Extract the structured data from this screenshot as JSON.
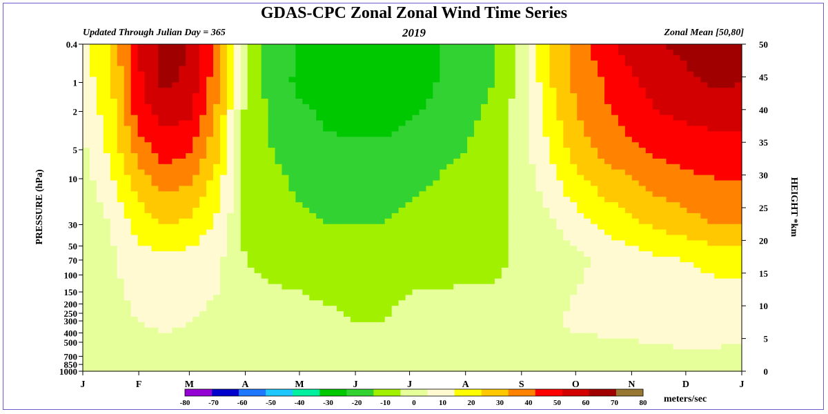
{
  "chart_data": {
    "type": "heatmap",
    "title": "GDAS-CPC Zonal Zonal Wind Time Series",
    "subtitle_left": "Updated Through Julian Day = 365",
    "subtitle_center": "2019",
    "subtitle_right": "Zonal Mean [50,80]",
    "ylabel_left": "PRESSURE (hPa)",
    "ylabel_right": "HEIGHT *km",
    "xlabel": "",
    "x_ticks": [
      "J",
      "F",
      "M",
      "A",
      "M",
      "J",
      "J",
      "A",
      "S",
      "O",
      "N",
      "D",
      "J"
    ],
    "x_tick_days": [
      0,
      31,
      59,
      90,
      120,
      151,
      181,
      212,
      243,
      273,
      304,
      334,
      365
    ],
    "pressure_ticks": [
      0.4,
      1,
      2,
      5,
      10,
      30,
      50,
      70,
      100,
      150,
      200,
      250,
      300,
      400,
      500,
      700,
      850,
      1000
    ],
    "pressure_range": [
      0.4,
      1000
    ],
    "pressure_scale": "log",
    "height_ticks": [
      0,
      5,
      10,
      15,
      20,
      25,
      30,
      35,
      40,
      45,
      50
    ],
    "height_range_km": [
      0,
      50
    ],
    "colorbar": {
      "units": "meters/sec",
      "ticks": [
        -80,
        -70,
        -60,
        -50,
        -40,
        -30,
        -20,
        -10,
        0,
        10,
        20,
        30,
        40,
        50,
        60,
        70,
        80
      ],
      "levels": [
        -80,
        -70,
        -60,
        -50,
        -40,
        -30,
        -20,
        -10,
        0,
        10,
        20,
        30,
        40,
        50,
        60,
        70,
        80
      ],
      "colors": [
        "#9400d3",
        "#0000cd",
        "#1e78ff",
        "#1ec8ff",
        "#00f0a0",
        "#00c800",
        "#32d232",
        "#a0f000",
        "#e6ff9a",
        "#fffad2",
        "#ffff00",
        "#ffc800",
        "#ff8200",
        "#ff0000",
        "#d20000",
        "#a00000",
        "#967832"
      ]
    },
    "day_samples": [
      0,
      15,
      31,
      45,
      59,
      75,
      90,
      105,
      120,
      135,
      151,
      166,
      181,
      196,
      212,
      228,
      243,
      258,
      273,
      288,
      304,
      319,
      334,
      350,
      365
    ],
    "pressure_samples": [
      0.4,
      1,
      2,
      5,
      10,
      30,
      70,
      150,
      300,
      700,
      1000
    ],
    "zonal_wind": [
      [
        15,
        30,
        60,
        75,
        70,
        45,
        0,
        -15,
        -20,
        -25,
        -30,
        -30,
        -25,
        -20,
        -15,
        -10,
        5,
        30,
        45,
        55,
        65,
        70,
        72,
        78,
        75
      ],
      [
        15,
        28,
        58,
        72,
        68,
        42,
        0,
        -15,
        -22,
        -25,
        -28,
        -28,
        -25,
        -20,
        -15,
        -10,
        5,
        28,
        42,
        50,
        58,
        65,
        68,
        72,
        70
      ],
      [
        12,
        25,
        55,
        65,
        62,
        38,
        -2,
        -12,
        -18,
        -22,
        -25,
        -25,
        -22,
        -18,
        -12,
        -8,
        5,
        25,
        40,
        48,
        55,
        60,
        62,
        65,
        65
      ],
      [
        8,
        22,
        45,
        55,
        52,
        32,
        -2,
        -10,
        -15,
        -18,
        -18,
        -18,
        -15,
        -12,
        -10,
        -6,
        5,
        20,
        35,
        42,
        48,
        52,
        55,
        55,
        55
      ],
      [
        5,
        18,
        35,
        45,
        42,
        25,
        -2,
        -8,
        -12,
        -14,
        -15,
        -14,
        -12,
        -10,
        -8,
        -5,
        5,
        15,
        28,
        35,
        40,
        45,
        48,
        50,
        50
      ],
      [
        0,
        10,
        25,
        30,
        28,
        18,
        -2,
        -5,
        -8,
        -10,
        -10,
        -10,
        -8,
        -6,
        -5,
        -3,
        3,
        8,
        15,
        22,
        28,
        32,
        36,
        40,
        40
      ],
      [
        3,
        8,
        15,
        18,
        16,
        12,
        0,
        -3,
        -5,
        -6,
        -6,
        -6,
        -5,
        -4,
        -3,
        -2,
        2,
        5,
        8,
        12,
        15,
        18,
        20,
        22,
        22
      ],
      [
        5,
        8,
        12,
        15,
        13,
        10,
        3,
        1,
        0,
        -1,
        -1,
        -1,
        0,
        0,
        1,
        1,
        3,
        5,
        10,
        12,
        15,
        18,
        18,
        18,
        18
      ],
      [
        6,
        8,
        10,
        12,
        10,
        8,
        5,
        3,
        2,
        1,
        0,
        0,
        1,
        2,
        3,
        4,
        5,
        8,
        12,
        13,
        15,
        16,
        17,
        17,
        16
      ],
      [
        3,
        5,
        6,
        6,
        6,
        5,
        4,
        3,
        2,
        2,
        2,
        2,
        2,
        2,
        2,
        3,
        4,
        5,
        6,
        6,
        6,
        7,
        8,
        8,
        6
      ],
      [
        0,
        1,
        2,
        1,
        1,
        1,
        0,
        0,
        1,
        2,
        3,
        4,
        2,
        1,
        0,
        0,
        1,
        1,
        1,
        1,
        1,
        1,
        1,
        1,
        0
      ]
    ]
  }
}
